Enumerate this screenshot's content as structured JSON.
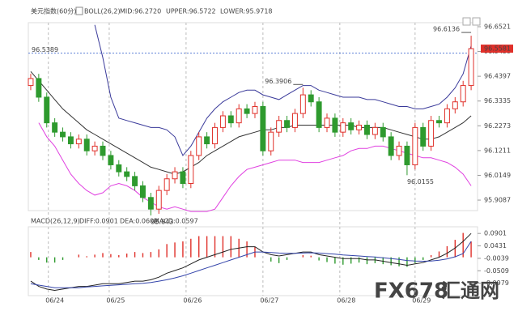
{
  "chart_data": {
    "type": "candlestick",
    "title": "美元指数",
    "period": "(60分)",
    "boll_label": "BOLL(26,2)",
    "boll_mid_label": "MID:96.2720",
    "boll_upper_label": "UPPER:96.5722",
    "boll_lower_label": "LOWER:95.9718",
    "macd_label": "MACD(26,12,9)",
    "macd_diff_label": "DIFF:0.0901",
    "macd_dea_label": "DEA:0.0602",
    "macd_macd_label": "MACD:0.0597",
    "ref_line": 96.5389,
    "ref_color": "#5b7fd6",
    "up_color": "#e0302a",
    "down_color": "#2e9a2e",
    "xlim": [
      -0.3,
      55.8
    ],
    "xticks": [
      {
        "value": 2.2,
        "label": "06/24"
      },
      {
        "value": 9.8,
        "label": "06/25"
      },
      {
        "value": 19.4,
        "label": "06/26"
      },
      {
        "value": 29,
        "label": "06/27"
      },
      {
        "value": 38.6,
        "label": "06/28"
      },
      {
        "value": 48,
        "label": "06/29"
      }
    ],
    "ylim": [
      95.8637,
      96.6694
    ],
    "yticks": [
      96.6521,
      96.5459,
      96.4397,
      96.3335,
      96.2273,
      96.1211,
      96.0149,
      95.9087
    ],
    "open": [
      96.4,
      96.43,
      96.35,
      96.24,
      96.2,
      96.18,
      96.15,
      96.17,
      96.12,
      96.14,
      96.1,
      96.06,
      96.03,
      96.01,
      95.97,
      95.92,
      95.87,
      95.95,
      96.0,
      96.03,
      95.98,
      96.1,
      96.18,
      96.15,
      96.22,
      96.27,
      96.24,
      96.3,
      96.28,
      96.31,
      96.12,
      96.2,
      96.25,
      96.22,
      96.28,
      96.36,
      96.33,
      96.22,
      96.26,
      96.2,
      96.24,
      96.21,
      96.23,
      96.19,
      96.22,
      96.18,
      96.1,
      96.14,
      96.06,
      96.22,
      96.14,
      96.25,
      96.24,
      96.3,
      96.33,
      96.4
    ],
    "high": [
      96.45,
      96.45,
      96.37,
      96.26,
      96.22,
      96.2,
      96.19,
      96.19,
      96.16,
      96.16,
      96.12,
      96.08,
      96.05,
      96.03,
      95.99,
      95.94,
      95.97,
      96.02,
      96.05,
      96.05,
      96.12,
      96.2,
      96.2,
      96.24,
      96.29,
      96.29,
      96.32,
      96.32,
      96.33,
      96.33,
      96.22,
      96.27,
      96.27,
      96.3,
      96.3906,
      96.38,
      96.35,
      96.28,
      96.28,
      96.26,
      96.26,
      96.25,
      96.25,
      96.24,
      96.24,
      96.2,
      96.16,
      96.16,
      96.24,
      96.24,
      96.27,
      96.27,
      96.32,
      96.35,
      96.42,
      96.6136
    ],
    "low": [
      96.38,
      96.33,
      96.22,
      96.18,
      96.16,
      96.13,
      96.13,
      96.1,
      96.1,
      96.08,
      96.04,
      96.01,
      95.99,
      95.95,
      95.9,
      95.843,
      95.85,
      95.93,
      95.98,
      95.96,
      95.96,
      96.08,
      96.13,
      96.13,
      96.2,
      96.22,
      96.22,
      96.26,
      96.26,
      96.1,
      96.1,
      96.18,
      96.2,
      96.2,
      96.26,
      96.31,
      96.2,
      96.2,
      96.18,
      96.18,
      96.19,
      96.19,
      96.17,
      96.17,
      96.16,
      96.08,
      96.08,
      96.0155,
      96.04,
      96.12,
      96.12,
      96.22,
      96.22,
      96.28,
      96.31,
      96.38
    ],
    "close": [
      96.43,
      96.35,
      96.24,
      96.2,
      96.18,
      96.15,
      96.17,
      96.12,
      96.14,
      96.1,
      96.06,
      96.03,
      96.01,
      95.97,
      95.92,
      95.87,
      95.95,
      96.0,
      96.03,
      95.98,
      96.1,
      96.18,
      96.15,
      96.22,
      96.27,
      96.24,
      96.3,
      96.28,
      96.31,
      96.12,
      96.2,
      96.25,
      96.22,
      96.28,
      96.36,
      96.33,
      96.22,
      96.26,
      96.2,
      96.24,
      96.21,
      96.23,
      96.19,
      96.22,
      96.18,
      96.1,
      96.14,
      96.06,
      96.22,
      96.14,
      96.25,
      96.24,
      96.3,
      96.33,
      96.4,
      96.5581
    ],
    "annotated_highs": [
      34,
      55
    ],
    "annotated_lows": [
      15,
      47
    ],
    "boll": [
      {
        "name": "MID",
        "color": "#333333",
        "values": [
          96.46,
          96.42,
          96.38,
          96.34,
          96.3,
          96.27,
          96.24,
          96.21,
          96.19,
          96.17,
          96.15,
          96.13,
          96.11,
          96.09,
          96.07,
          96.05,
          96.04,
          96.03,
          96.02,
          96.03,
          96.05,
          96.07,
          96.1,
          96.12,
          96.14,
          96.16,
          96.18,
          96.19,
          96.2,
          96.21,
          96.21,
          96.22,
          96.22,
          96.23,
          96.23,
          96.23,
          96.23,
          96.23,
          96.23,
          96.23,
          96.23,
          96.22,
          96.22,
          96.22,
          96.22,
          96.21,
          96.2,
          96.19,
          96.18,
          96.17,
          96.17,
          96.18,
          96.2,
          96.22,
          96.24,
          96.27
        ]
      },
      {
        "name": "UPPER",
        "color": "#3a3a9a",
        "values": [
          null,
          null,
          null,
          null,
          null,
          null,
          null,
          null,
          96.66,
          96.52,
          96.35,
          96.26,
          96.25,
          96.24,
          96.23,
          96.22,
          96.22,
          96.21,
          96.18,
          96.1,
          96.14,
          96.2,
          96.26,
          96.3,
          96.33,
          96.35,
          96.37,
          96.38,
          96.38,
          96.36,
          96.35,
          96.34,
          96.36,
          96.38,
          96.4,
          96.4,
          96.38,
          96.37,
          96.36,
          96.35,
          96.35,
          96.35,
          96.34,
          96.34,
          96.33,
          96.32,
          96.31,
          96.31,
          96.3,
          96.3,
          96.31,
          96.32,
          96.35,
          96.39,
          96.45,
          96.57
        ]
      },
      {
        "name": "LOWER",
        "color": "#e040e0",
        "values": [
          null,
          96.24,
          96.18,
          96.14,
          96.08,
          96.02,
          95.98,
          95.95,
          95.93,
          95.94,
          95.97,
          95.98,
          95.97,
          95.95,
          95.92,
          95.9,
          95.88,
          95.87,
          95.88,
          95.87,
          95.86,
          95.86,
          95.86,
          95.87,
          95.92,
          95.97,
          96.01,
          96.04,
          96.05,
          96.06,
          96.07,
          96.08,
          96.08,
          96.08,
          96.07,
          96.07,
          96.07,
          96.08,
          96.09,
          96.1,
          96.12,
          96.13,
          96.13,
          96.14,
          96.14,
          96.13,
          96.12,
          96.11,
          96.1,
          96.09,
          96.09,
          96.08,
          96.07,
          96.05,
          96.02,
          95.97
        ]
      }
    ],
    "macd_ylim": [
      -0.1449,
      0.1152
    ],
    "macd_yticks": [
      0.0901,
      0.0431,
      -0.0039,
      -0.0509,
      -0.0979
    ],
    "macd_lines": [
      {
        "name": "DIFF",
        "color": "#222222",
        "values": [
          -0.09,
          -0.11,
          -0.12,
          -0.125,
          -0.12,
          -0.115,
          -0.11,
          -0.11,
          -0.105,
          -0.1,
          -0.1,
          -0.1,
          -0.095,
          -0.09,
          -0.09,
          -0.085,
          -0.075,
          -0.06,
          -0.05,
          -0.04,
          -0.025,
          -0.01,
          0.0,
          0.01,
          0.02,
          0.03,
          0.035,
          0.04,
          0.04,
          0.02,
          0.01,
          0.005,
          0.01,
          0.015,
          0.02,
          0.02,
          0.01,
          0.005,
          0.0,
          -0.005,
          -0.005,
          -0.005,
          -0.01,
          -0.01,
          -0.015,
          -0.02,
          -0.025,
          -0.03,
          -0.025,
          -0.02,
          -0.01,
          0.0,
          0.015,
          0.035,
          0.06,
          0.0901
        ]
      },
      {
        "name": "DEA",
        "color": "#3344aa",
        "values": [
          -0.1,
          -0.105,
          -0.11,
          -0.115,
          -0.115,
          -0.115,
          -0.115,
          -0.112,
          -0.11,
          -0.108,
          -0.106,
          -0.104,
          -0.102,
          -0.1,
          -0.098,
          -0.095,
          -0.09,
          -0.085,
          -0.078,
          -0.07,
          -0.06,
          -0.05,
          -0.04,
          -0.03,
          -0.02,
          -0.01,
          0.0,
          0.01,
          0.02,
          0.02,
          0.018,
          0.016,
          0.015,
          0.015,
          0.016,
          0.017,
          0.016,
          0.014,
          0.012,
          0.009,
          0.007,
          0.005,
          0.003,
          0.001,
          -0.002,
          -0.005,
          -0.008,
          -0.012,
          -0.014,
          -0.015,
          -0.014,
          -0.011,
          -0.006,
          0.002,
          0.014,
          0.0602
        ]
      }
    ],
    "macd_hist": [
      0.02,
      -0.01,
      -0.02,
      -0.02,
      -0.01,
      0.0,
      0.01,
      0.004,
      0.01,
      0.016,
      0.012,
      0.008,
      0.014,
      0.02,
      0.016,
      0.02,
      0.03,
      0.05,
      0.056,
      0.06,
      0.07,
      0.08,
      0.08,
      0.08,
      0.08,
      0.08,
      0.07,
      0.06,
      0.04,
      0.0,
      -0.016,
      -0.022,
      -0.01,
      0.0,
      0.008,
      0.006,
      -0.012,
      -0.018,
      -0.024,
      -0.028,
      -0.024,
      -0.02,
      -0.026,
      -0.022,
      -0.026,
      -0.03,
      -0.034,
      -0.036,
      -0.022,
      -0.01,
      0.008,
      0.022,
      0.042,
      0.066,
      0.092,
      0.0597
    ],
    "watermark": "FX678",
    "watermark_cn": "汇通网"
  }
}
